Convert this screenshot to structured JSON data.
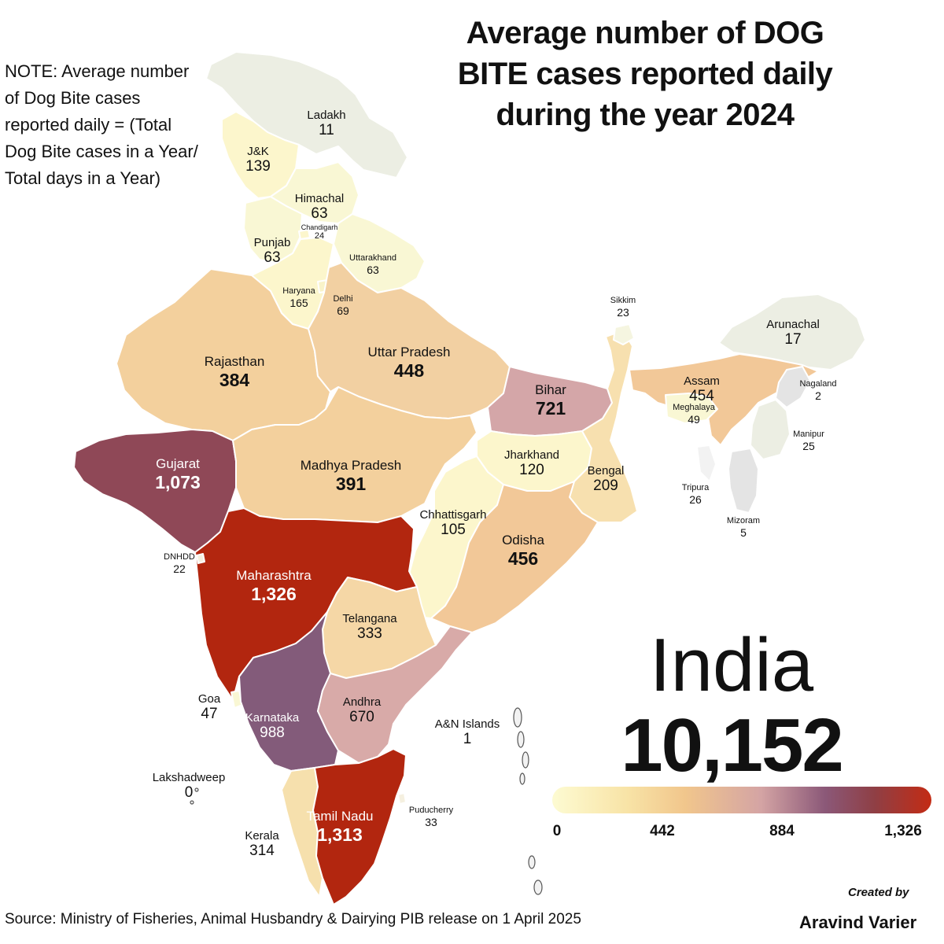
{
  "title": "Average number of DOG BITE cases reported daily during the year 2024",
  "note": "NOTE: Average number of Dog Bite cases reported daily = (Total Dog Bite cases in a Year/ Total days in a Year)",
  "country": {
    "name": "India",
    "total": "10,152"
  },
  "legend": {
    "ticks": [
      "0",
      "442",
      "884",
      "1,326"
    ],
    "min": 0,
    "max": 1326,
    "colors": [
      "#fdfbd2",
      "#f8e3a6",
      "#f1c68c",
      "#d4a4a4",
      "#8b5878",
      "#8f3f45",
      "#c32b14"
    ]
  },
  "regions": [
    {
      "id": "ladakh",
      "name": "Ladakh",
      "value": "11"
    },
    {
      "id": "jk",
      "name": "J&K",
      "value": "139"
    },
    {
      "id": "himachal",
      "name": "Himachal",
      "value": "63"
    },
    {
      "id": "chandigarh",
      "name": "Chandigarh",
      "value": "24"
    },
    {
      "id": "punjab",
      "name": "Punjab",
      "value": "63"
    },
    {
      "id": "uttarakhand",
      "name": "Uttarakhand",
      "value": "63"
    },
    {
      "id": "haryana",
      "name": "Haryana",
      "value": "165"
    },
    {
      "id": "delhi",
      "name": "Delhi",
      "value": "69"
    },
    {
      "id": "rajasthan",
      "name": "Rajasthan",
      "value": "384"
    },
    {
      "id": "up",
      "name": "Uttar Pradesh",
      "value": "448"
    },
    {
      "id": "bihar",
      "name": "Bihar",
      "value": "721"
    },
    {
      "id": "sikkim",
      "name": "Sikkim",
      "value": "23"
    },
    {
      "id": "arunachal",
      "name": "Arunachal",
      "value": "17"
    },
    {
      "id": "assam",
      "name": "Assam",
      "value": "454"
    },
    {
      "id": "nagaland",
      "name": "Nagaland",
      "value": "2"
    },
    {
      "id": "meghalaya",
      "name": "Meghalaya",
      "value": "49"
    },
    {
      "id": "manipur",
      "name": "Manipur",
      "value": "25"
    },
    {
      "id": "tripura",
      "name": "Tripura",
      "value": "26"
    },
    {
      "id": "mizoram",
      "name": "Mizoram",
      "value": "5"
    },
    {
      "id": "gujarat",
      "name": "Gujarat",
      "value": "1,073"
    },
    {
      "id": "mp",
      "name": "Madhya Pradesh",
      "value": "391"
    },
    {
      "id": "jharkhand",
      "name": "Jharkhand",
      "value": "120"
    },
    {
      "id": "bengal",
      "name": "Bengal",
      "value": "209"
    },
    {
      "id": "chhattisgarh",
      "name": "Chhattisgarh",
      "value": "105"
    },
    {
      "id": "odisha",
      "name": "Odisha",
      "value": "456"
    },
    {
      "id": "dnhdd",
      "name": "DNHDD",
      "value": "22"
    },
    {
      "id": "maharashtra",
      "name": "Maharashtra",
      "value": "1,326"
    },
    {
      "id": "telangana",
      "name": "Telangana",
      "value": "333"
    },
    {
      "id": "goa",
      "name": "Goa",
      "value": "47"
    },
    {
      "id": "karnataka",
      "name": "Karnataka",
      "value": "988"
    },
    {
      "id": "andhra",
      "name": "Andhra",
      "value": "670"
    },
    {
      "id": "an_islands",
      "name": "A&N Islands",
      "value": "1"
    },
    {
      "id": "lakshadweep",
      "name": "Lakshadweep",
      "value": "0"
    },
    {
      "id": "kerala",
      "name": "Kerala",
      "value": "314"
    },
    {
      "id": "tamilnadu",
      "name": "Tamil Nadu",
      "value": "1,313"
    },
    {
      "id": "puducherry",
      "name": "Puducherry",
      "value": "33"
    }
  ],
  "source": "Source: Ministry of Fisheries, Animal Husbandry & Dairying PIB release on 1 April 2025",
  "credit": {
    "label": "Created by",
    "name": "Aravind Varier"
  }
}
